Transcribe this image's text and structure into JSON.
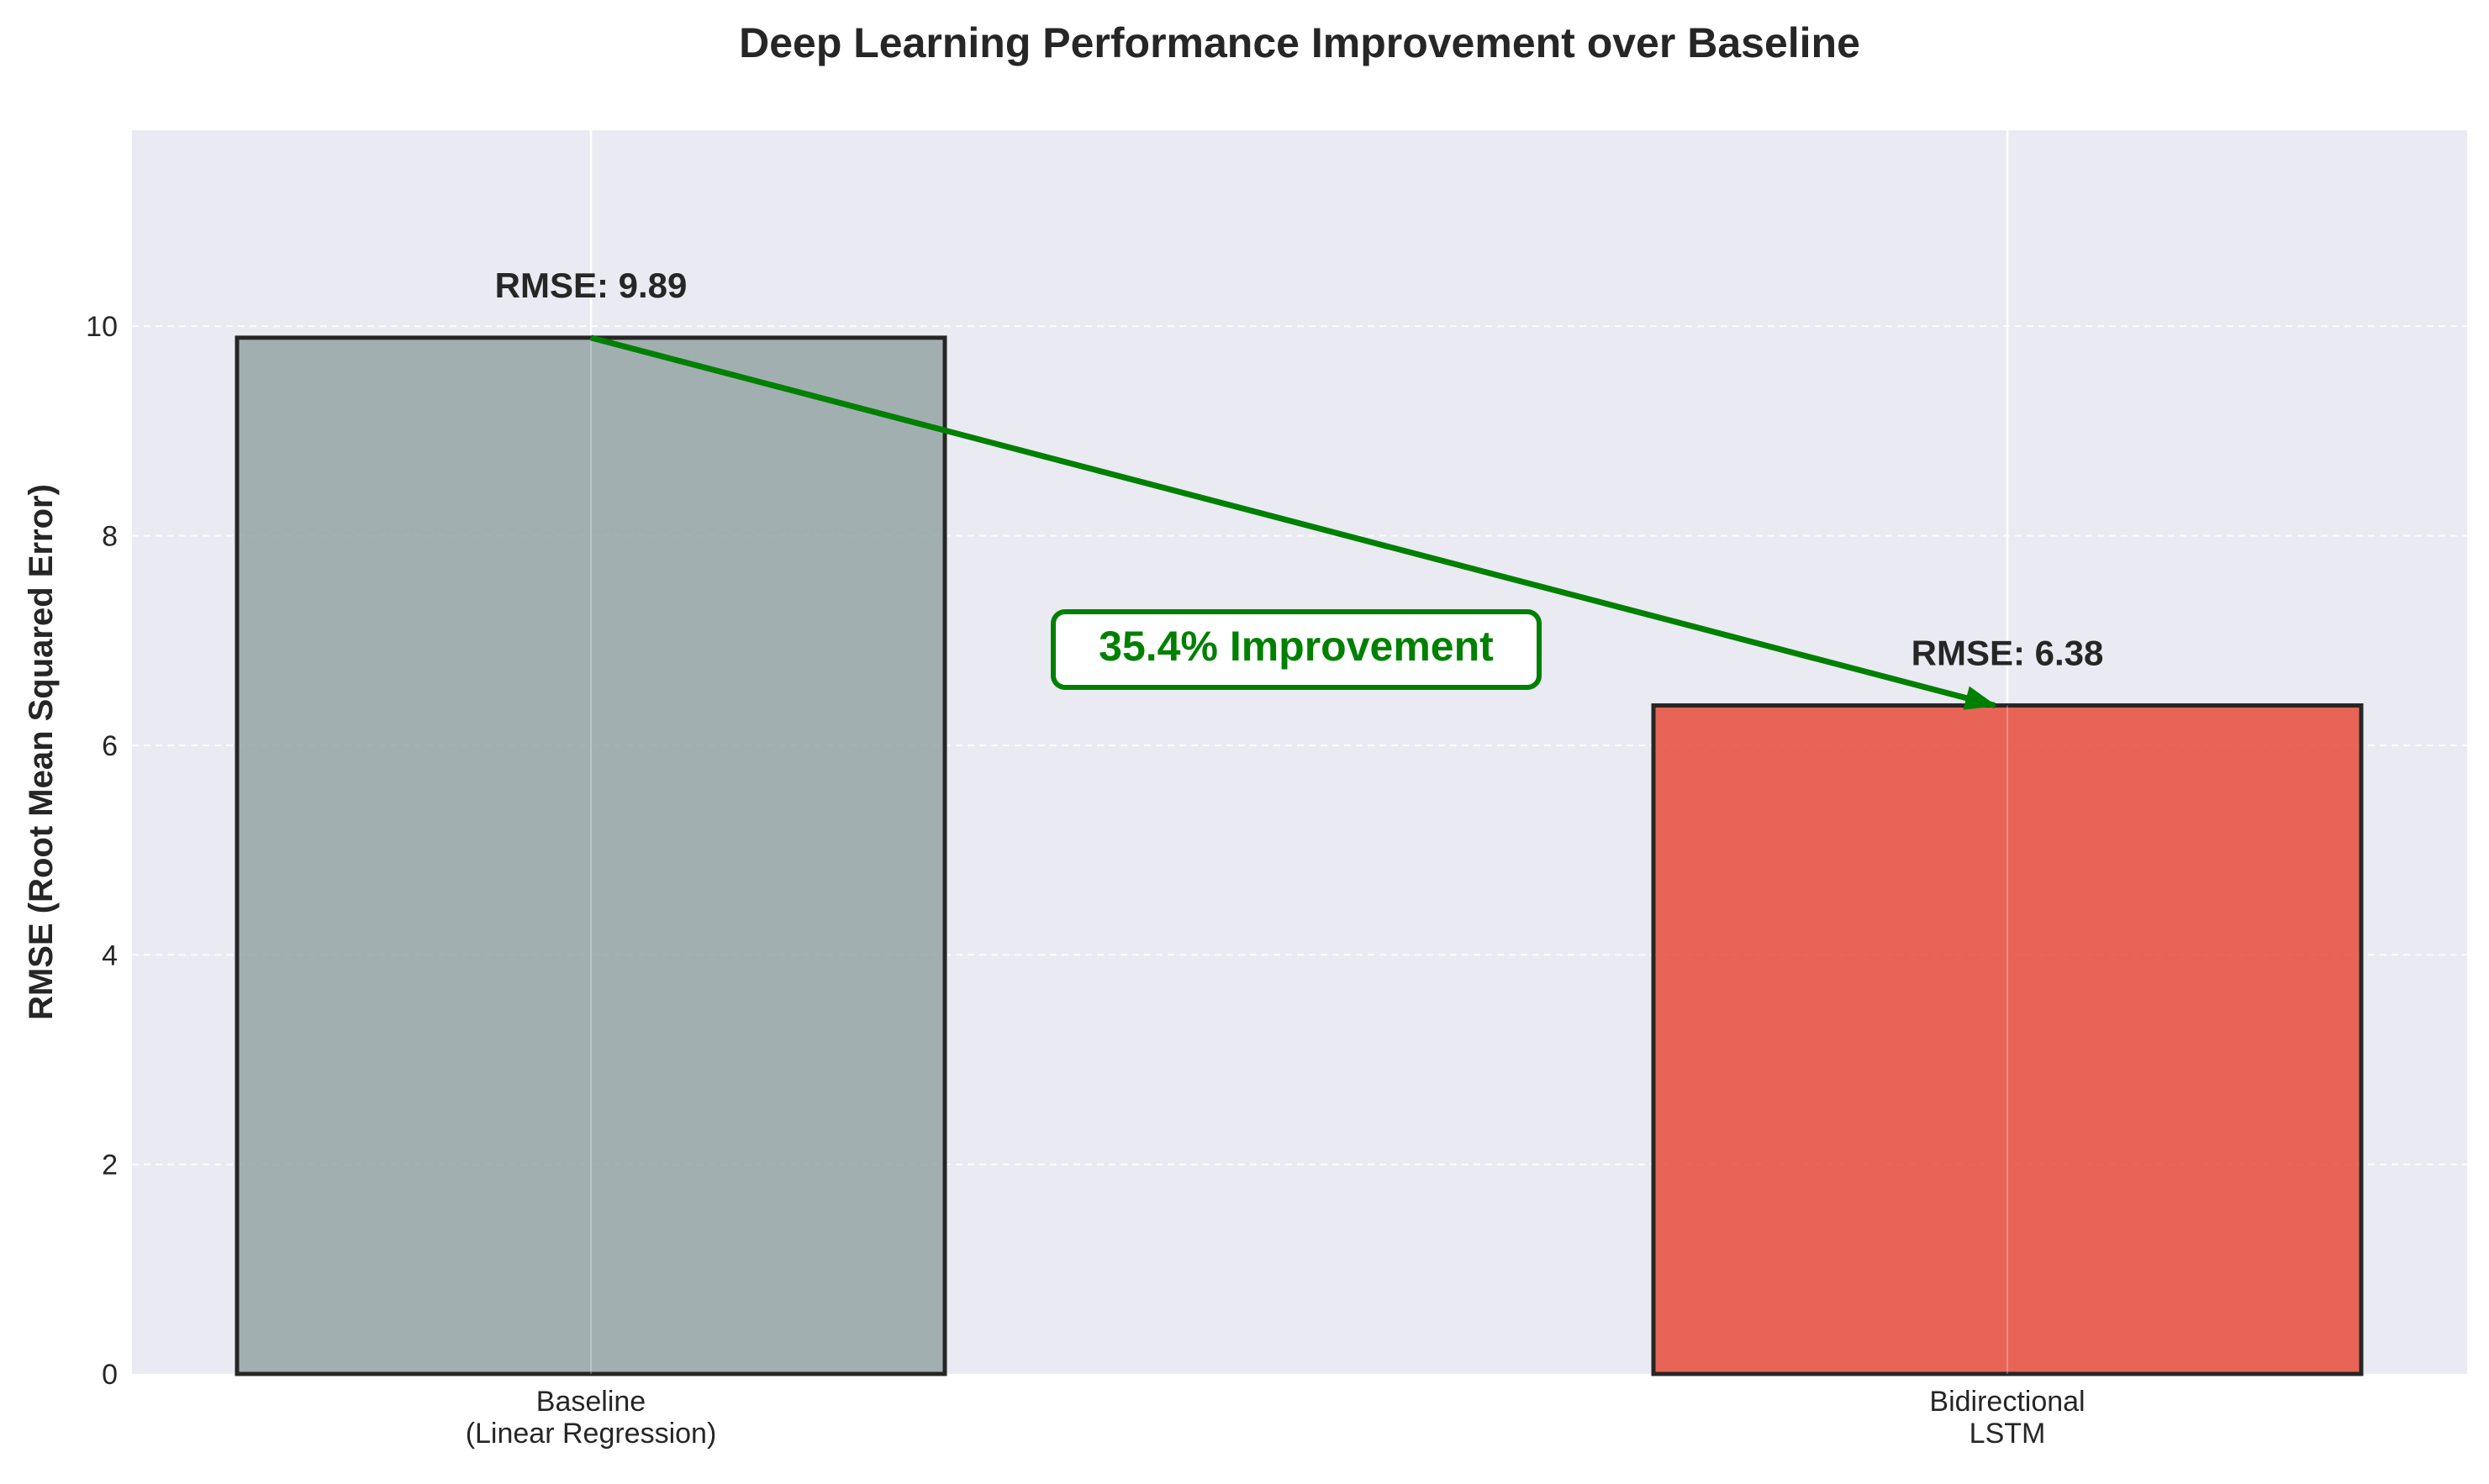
{
  "chart_data": {
    "type": "bar",
    "title": "Deep Learning Performance Improvement over Baseline",
    "xlabel": "",
    "ylabel": "RMSE (Root Mean Squared Error)",
    "categories": [
      [
        "Baseline",
        "(Linear Regression)"
      ],
      [
        "Bidirectional",
        "LSTM"
      ]
    ],
    "values": [
      9.89,
      6.38
    ],
    "value_labels": [
      "RMSE: 9.89",
      "RMSE: 6.38"
    ],
    "bar_colors": [
      "#95a5a6",
      "#e74c3c"
    ],
    "ylim": [
      0,
      11.87
    ],
    "yticks": [
      0,
      2,
      4,
      6,
      8,
      10
    ],
    "grid": true,
    "annotation": {
      "text": "35.4% Improvement",
      "color": "#008000",
      "arrow_from_category": 0,
      "arrow_to_category": 1
    },
    "colors": {
      "plot_background": "#eaeaf2",
      "bar_edge": "#262626",
      "text": "#262626",
      "annotation": "#008000"
    }
  }
}
